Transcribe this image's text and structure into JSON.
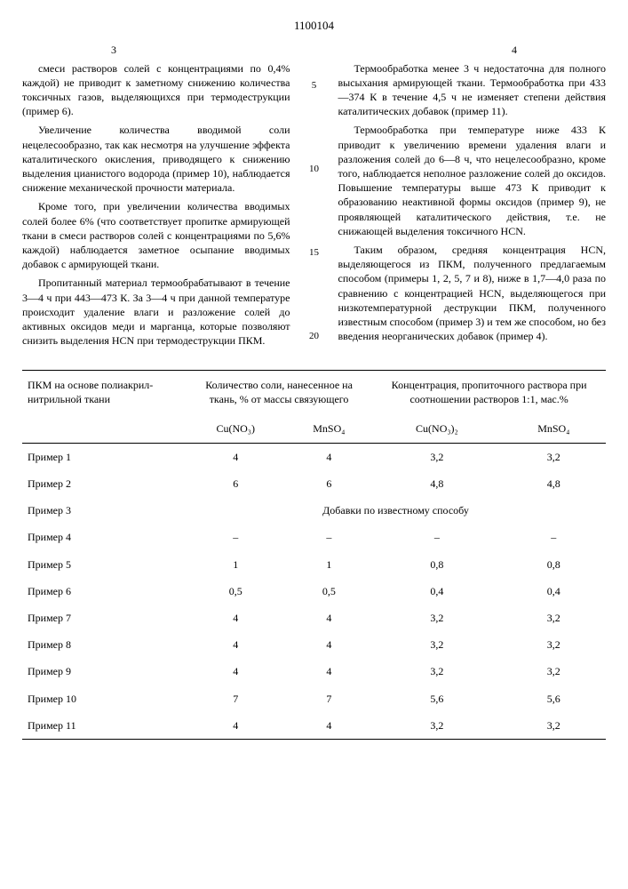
{
  "doc_number": "1100104",
  "page_left": "3",
  "page_right": "4",
  "left_col": {
    "p1": "смеси растворов солей с концентрациями по 0,4% каждой) не приводит к заметному снижению количества токсичных газов, выделяющихся при термодеструкции (пример 6).",
    "p2": "Увеличение количества вводимой соли нецелесообразно, так как несмотря на улучшение эффекта каталитического окисления, приводящего к снижению выделения цианистого водорода (пример 10), наблюдается снижение механической прочности материала.",
    "p3": "Кроме того, при увеличении количества вводимых солей более 6% (что соответствует пропитке армирующей ткани в смеси растворов солей с концентрациями по 5,6% каждой) наблюдается заметное осыпание вводимых добавок с армирующей ткани.",
    "p4": "Пропитанный материал термообрабатывают в течение 3—4 ч при 443—473 К. За 3—4 ч при данной температуре происходит удаление влаги и разложение солей до активных оксидов меди и марганца, которые позволяют снизить выделения HCN при термодеструкции ПКМ."
  },
  "right_col": {
    "p1": "Термообработка менее 3 ч недостаточна для полного высыхания армирующей ткани. Термообработка при 433—374 К в течение 4,5 ч не изменяет степени действия каталитических добавок (пример 11).",
    "p2": "Термообработка при температуре ниже 433 К приводит к увеличению времени удаления влаги и разложения солей до 6—8 ч, что нецелесообразно, кроме того, наблюдается неполное разложение солей до оксидов. Повышение температуры выше 473 К приводит к образованию неактивной формы оксидов (пример 9), не проявляющей каталитического действия, т.е. не снижающей выделения токсичного HCN.",
    "p3": "Таким образом, средняя концентрация HCN, выделяющегося из ПКМ, полученного предлагаемым способом (примеры 1, 2, 5, 7 и 8), ниже в 1,7—4,0 раза по сравнению с концентрацией HCN, выделяющегося при низкотемпературной деструкции ПКМ, полученного известным способом (пример 3) и тем же способом, но без введения неорганических добавок (пример 4)."
  },
  "line_numbers": [
    "5",
    "10",
    "15",
    "20"
  ],
  "table": {
    "head1_c1": "ПКМ на основе полиакрил-нитрильной ткани",
    "head1_c2": "Количество соли, нанесенное на ткань, % от массы связующего",
    "head1_c3": "Концентрация, пропиточного раствора при соотношении растворов 1:1, мас.%",
    "sub_c1": "Cu(NO₃)",
    "sub_c2": "MnSO₄",
    "sub_c3": "Cu(NO₃)₂",
    "sub_c4": "MnSO₄",
    "merge_note": "Добавки по известному способу",
    "rows": [
      {
        "label": "Пример 1",
        "v1": "4",
        "v2": "4",
        "v3": "3,2",
        "v4": "3,2"
      },
      {
        "label": "Пример 2",
        "v1": "6",
        "v2": "6",
        "v3": "4,8",
        "v4": "4,8"
      },
      {
        "label": "Пример 3",
        "merge": true
      },
      {
        "label": "Пример 4",
        "v1": "–",
        "v2": "–",
        "v3": "–",
        "v4": "–"
      },
      {
        "label": "Пример 5",
        "v1": "1",
        "v2": "1",
        "v3": "0,8",
        "v4": "0,8"
      },
      {
        "label": "Пример 6",
        "v1": "0,5",
        "v2": "0,5",
        "v3": "0,4",
        "v4": "0,4"
      },
      {
        "label": "Пример 7",
        "v1": "4",
        "v2": "4",
        "v3": "3,2",
        "v4": "3,2"
      },
      {
        "label": "Пример 8",
        "v1": "4",
        "v2": "4",
        "v3": "3,2",
        "v4": "3,2"
      },
      {
        "label": "Пример 9",
        "v1": "4",
        "v2": "4",
        "v3": "3,2",
        "v4": "3,2"
      },
      {
        "label": "Пример 10",
        "v1": "7",
        "v2": "7",
        "v3": "5,6",
        "v4": "5,6"
      },
      {
        "label": "Пример 11",
        "v1": "4",
        "v2": "4",
        "v3": "3,2",
        "v4": "3,2"
      }
    ]
  }
}
